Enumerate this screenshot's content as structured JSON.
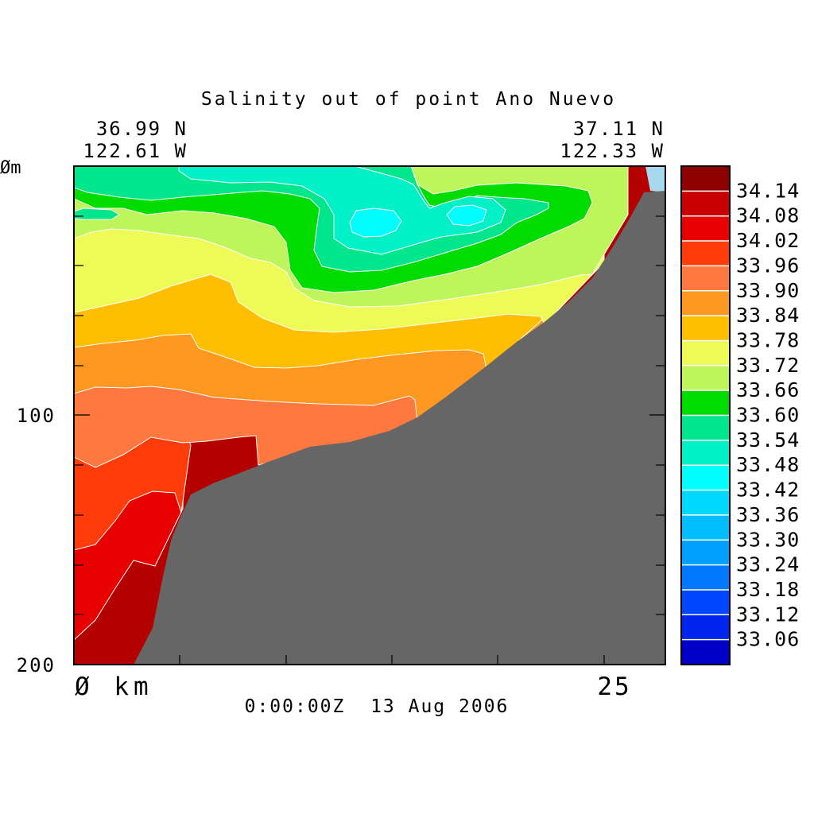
{
  "chart_data": {
    "type": "heatmap",
    "title": "Salinity out of point Ano Nuevo",
    "start_location": {
      "lat": "36.99 N",
      "lon": "122.61 W"
    },
    "end_location": {
      "lat": "37.11 N",
      "lon": "122.33 W"
    },
    "y_axis": {
      "unit_label": "Øm",
      "tick_labels": [
        "100",
        "200"
      ],
      "range": [
        0,
        200
      ],
      "minor_tick_step": 20,
      "direction": "depth increasing downward"
    },
    "x_axis": {
      "start_label": "Ø km",
      "end_label": "25",
      "range": [
        0,
        28
      ],
      "tick_step": 5
    },
    "timestamp": "0:00:00Z  13 Aug 2006",
    "colorbar": {
      "labels": [
        "34.14",
        "34.08",
        "34.02",
        "33.96",
        "33.90",
        "33.84",
        "33.78",
        "33.72",
        "33.66",
        "33.60",
        "33.54",
        "33.48",
        "33.42",
        "33.36",
        "33.30",
        "33.24",
        "33.18",
        "33.12",
        "33.06"
      ],
      "colors": [
        "#8e0000",
        "#c80000",
        "#e80000",
        "#ff3c0a",
        "#ff7840",
        "#ff9820",
        "#ffbe00",
        "#eefa55",
        "#bef55a",
        "#00dc00",
        "#00e68c",
        "#00f0c8",
        "#00ffff",
        "#00d8ff",
        "#00beff",
        "#00a0ff",
        "#0078ff",
        "#0046ff",
        "#0026ee",
        "#0000c8"
      ]
    },
    "contour_bands_present": [
      "33.42-33.48",
      "33.48-33.54",
      "33.60-33.66",
      "33.66-33.72",
      "33.72-33.78",
      "33.78-33.84",
      "33.84-33.90",
      "33.90-33.96",
      "33.96-34.02",
      "34.02-34.08",
      "34.08-34.14"
    ],
    "bathymetry": "seafloor shown in gray, shoaling from ~200 m near 2.5 km to ~5 m near 28 km",
    "grid": false
  }
}
